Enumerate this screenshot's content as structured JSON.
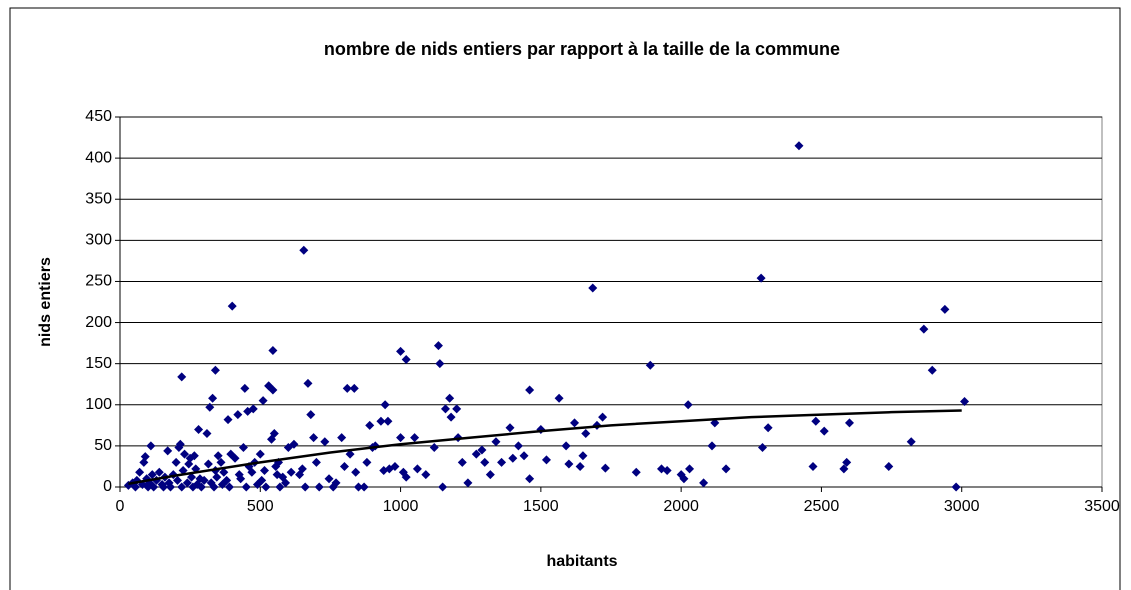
{
  "chart_data": {
    "type": "scatter",
    "title": "nombre de nids entiers  par rapport à la taille de la commune",
    "x_label": "habitants",
    "y_label": "nids entiers",
    "xlim": [
      0,
      3500
    ],
    "xticks": [
      0,
      500,
      1000,
      1500,
      2000,
      2500,
      3000,
      3500
    ],
    "ylim": [
      0,
      450
    ],
    "yticks": [
      0,
      50,
      100,
      150,
      200,
      250,
      300,
      350,
      400,
      450
    ],
    "grid": true,
    "series": [
      {
        "color": "#000080",
        "x": [
          2420,
          655,
          2285,
          1685,
          400,
          2940,
          2865,
          1135,
          545,
          1000,
          1020,
          1140,
          1890,
          340,
          2895,
          220,
          670,
          530,
          545,
          445,
          810,
          835,
          1460,
          1565,
          1175,
          3010,
          2025,
          945,
          30,
          45,
          55,
          60,
          70,
          80,
          85,
          90,
          95,
          100,
          105,
          110,
          115,
          120,
          130,
          140,
          150,
          155,
          160,
          170,
          175,
          180,
          190,
          200,
          205,
          210,
          215,
          220,
          225,
          230,
          240,
          245,
          250,
          255,
          260,
          265,
          270,
          275,
          280,
          285,
          290,
          300,
          310,
          315,
          320,
          325,
          330,
          335,
          340,
          345,
          350,
          360,
          365,
          370,
          380,
          385,
          390,
          395,
          410,
          420,
          425,
          430,
          440,
          450,
          455,
          460,
          470,
          475,
          480,
          490,
          500,
          505,
          510,
          515,
          520,
          530,
          540,
          550,
          555,
          560,
          565,
          570,
          580,
          590,
          600,
          610,
          620,
          640,
          650,
          660,
          680,
          690,
          700,
          710,
          730,
          745,
          760,
          770,
          790,
          800,
          820,
          840,
          850,
          870,
          880,
          890,
          900,
          910,
          930,
          940,
          955,
          960,
          980,
          1000,
          1010,
          1020,
          1050,
          1060,
          1090,
          1120,
          1150,
          1160,
          1180,
          1200,
          1205,
          1220,
          1240,
          1270,
          1290,
          1300,
          1320,
          1340,
          1360,
          1390,
          1400,
          1420,
          1440,
          1460,
          1500,
          1520,
          1590,
          1600,
          1620,
          1640,
          1650,
          1660,
          1700,
          1720,
          1730,
          1840,
          1930,
          1950,
          2000,
          2010,
          2030,
          2080,
          2110,
          2120,
          2160,
          2290,
          2310,
          2470,
          2480,
          2510,
          2580,
          2590,
          2600,
          2740,
          2820,
          2980
        ],
        "values": [
          415,
          288,
          254,
          242,
          220,
          216,
          192,
          172,
          166,
          165,
          155,
          150,
          148,
          142,
          142,
          134,
          126,
          123,
          118,
          120,
          120,
          120,
          118,
          108,
          108,
          104,
          100,
          100,
          2,
          5,
          0,
          8,
          18,
          3,
          30,
          37,
          10,
          0,
          5,
          50,
          15,
          0,
          8,
          18,
          3,
          0,
          12,
          44,
          5,
          0,
          15,
          30,
          8,
          48,
          52,
          0,
          20,
          40,
          5,
          28,
          35,
          12,
          0,
          38,
          22,
          3,
          70,
          10,
          0,
          8,
          65,
          28,
          97,
          5,
          108,
          0,
          20,
          12,
          38,
          30,
          3,
          18,
          8,
          82,
          0,
          40,
          35,
          88,
          15,
          10,
          48,
          0,
          92,
          25,
          18,
          95,
          30,
          3,
          40,
          8,
          105,
          20,
          0,
          123,
          58,
          65,
          25,
          15,
          30,
          0,
          12,
          5,
          48,
          18,
          52,
          15,
          22,
          0,
          88,
          60,
          30,
          0,
          55,
          10,
          0,
          5,
          60,
          25,
          40,
          18,
          0,
          0,
          30,
          75,
          48,
          50,
          80,
          20,
          80,
          22,
          25,
          60,
          18,
          12,
          60,
          22,
          15,
          48,
          0,
          95,
          85,
          95,
          60,
          30,
          5,
          40,
          45,
          30,
          15,
          55,
          30,
          72,
          35,
          50,
          38,
          10,
          70,
          33,
          50,
          28,
          78,
          25,
          38,
          65,
          75,
          85,
          23,
          18,
          22,
          20,
          15,
          10,
          22,
          5,
          50,
          78,
          22,
          48,
          72,
          25,
          80,
          68,
          22,
          30,
          78,
          25,
          55,
          0
        ]
      },
      {
        "color": "#000000",
        "line": true,
        "x": [
          30,
          200,
          500,
          750,
          1000,
          1250,
          1500,
          1750,
          2000,
          2250,
          2500,
          2750,
          3000
        ],
        "values": [
          4,
          14,
          30,
          42,
          52,
          60,
          68,
          75,
          80,
          85,
          88,
          91,
          93
        ]
      }
    ]
  }
}
